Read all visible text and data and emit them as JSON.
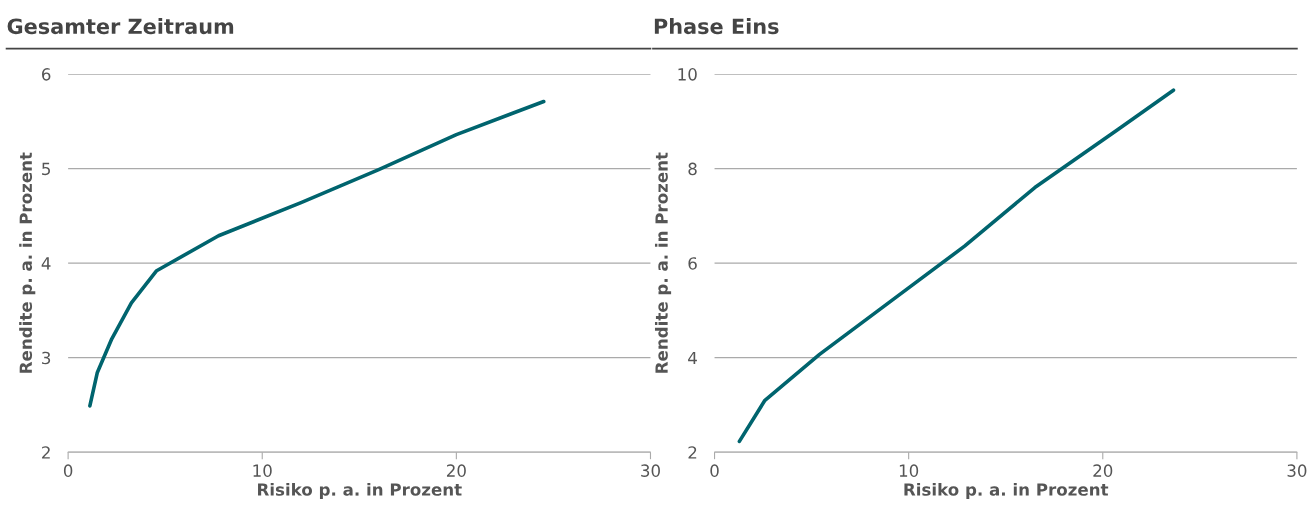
{
  "chart_data": [
    {
      "type": "line",
      "title": "Gesamter Zeitraum",
      "xlabel": "Risiko p. a. in Prozent",
      "ylabel": "Rendite p. a. in Prozent",
      "xlim": [
        0,
        30
      ],
      "xticks": [
        0,
        10,
        20,
        30
      ],
      "ylim": [
        2,
        6
      ],
      "yticks": [
        2,
        3,
        4,
        5,
        6
      ],
      "grid": "y",
      "series": [
        {
          "color": "#00646e",
          "x": [
            1.12,
            1.5,
            2.25,
            3.26,
            4.56,
            7.75,
            12.0,
            16.0,
            20.0,
            24.5
          ],
          "values": [
            2.49,
            2.84,
            3.2,
            3.58,
            3.92,
            4.29,
            4.64,
            4.99,
            5.36,
            5.71
          ]
        }
      ]
    },
    {
      "type": "line",
      "title": "Phase Eins",
      "xlabel": "Risiko p. a. in Prozent",
      "ylabel": "Rendite p. a. in Prozent",
      "xlim": [
        0,
        30
      ],
      "xticks": [
        0,
        10,
        20,
        30
      ],
      "ylim": [
        2,
        10
      ],
      "yticks": [
        2,
        4,
        6,
        8,
        10
      ],
      "grid": "y",
      "series": [
        {
          "color": "#00646e",
          "x": [
            1.28,
            2.58,
            5.41,
            10.17,
            12.88,
            16.5,
            20.78,
            23.64
          ],
          "values": [
            2.23,
            3.09,
            4.07,
            5.53,
            6.36,
            7.6,
            8.83,
            9.66
          ]
        }
      ]
    }
  ]
}
